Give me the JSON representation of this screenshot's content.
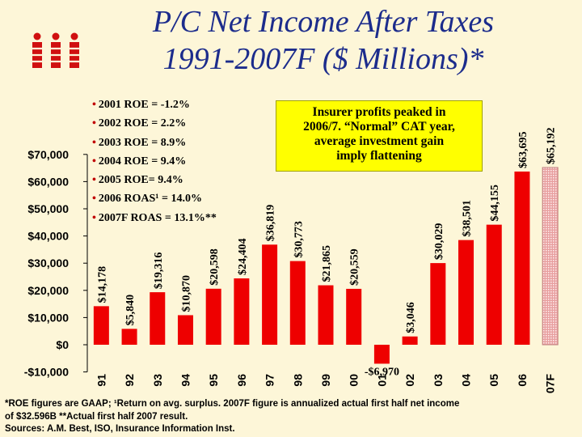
{
  "title_line1": "P/C Net Income After Taxes",
  "title_line2": "1991-2007F ($ Millions)*",
  "colors": {
    "background": "#fdf6d8",
    "bar": "#ee0000",
    "bar_forecast": "#e8a0a0",
    "title": "#1c2c8c",
    "callout": "#ffff00",
    "logo": "#d01010"
  },
  "roe_notes": [
    "2001 ROE = -1.2%",
    "2002 ROE = 2.2%",
    "2003 ROE = 8.9%",
    "2004 ROE = 9.4%",
    "2005 ROE= 9.4%",
    "2006 ROAS¹ = 14.0%",
    "2007F ROAS = 13.1%**"
  ],
  "callout": {
    "line1": "Insurer profits peaked in",
    "line2": "2006/7.  “Normal” CAT year,",
    "line3": "average investment gain",
    "line4": "imply flattening"
  },
  "footnote": {
    "line1": "*ROE figures are GAAP; ¹Return on avg.  surplus.  2007F figure is annualized actual first half net income",
    "line2": "of $32.596B **Actual first half 2007 result.",
    "line3": "Sources: A.M. Best, ISO, Insurance Information Inst."
  },
  "chart_data": {
    "type": "bar",
    "categories": [
      "91",
      "92",
      "93",
      "94",
      "95",
      "96",
      "97",
      "98",
      "99",
      "00",
      "01",
      "02",
      "03",
      "04",
      "05",
      "06",
      "07F"
    ],
    "values": [
      14178,
      5840,
      19316,
      10870,
      20598,
      24404,
      36819,
      30773,
      21865,
      20559,
      -6970,
      3046,
      30029,
      38501,
      44155,
      63695,
      65192
    ],
    "value_labels": [
      "$14,178",
      "$5,840",
      "$19,316",
      "$10,870",
      "$20,598",
      "$24,404",
      "$36,819",
      "$30,773",
      "$21,865",
      "$20,559",
      "-$6,970",
      "$3,046",
      "$30,029",
      "$38,501",
      "$44,155",
      "$63,695",
      "$65,192"
    ],
    "forecast_index": 16,
    "y_ticks": [
      -10000,
      0,
      10000,
      20000,
      30000,
      40000,
      50000,
      60000,
      70000
    ],
    "y_tick_labels": [
      "-$10,000",
      "$0",
      "$10,000",
      "$20,000",
      "$30,000",
      "$40,000",
      "$50,000",
      "$60,000",
      "$70,000"
    ],
    "ylim": [
      -10000,
      70000
    ],
    "grid": false,
    "legend": "none"
  }
}
